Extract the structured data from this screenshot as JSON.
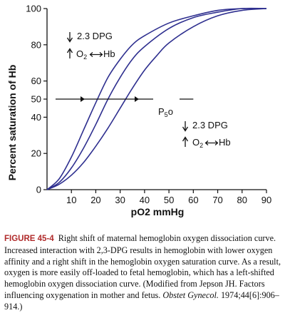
{
  "chart_data": {
    "type": "line",
    "xlabel": "pO2 mmHg",
    "ylabel": "Percent saturation of Hb",
    "xlim": [
      0,
      90
    ],
    "ylim": [
      0,
      100
    ],
    "x_ticks": [
      10,
      20,
      30,
      40,
      50,
      60,
      70,
      80,
      90
    ],
    "y_ticks": [
      0,
      20,
      40,
      50,
      60,
      80,
      100
    ],
    "grid": false,
    "series": [
      {
        "x": [
          0,
          5,
          10,
          15,
          20,
          25,
          30,
          35,
          40,
          50,
          60,
          70,
          80,
          90
        ],
        "values": [
          0,
          6,
          18,
          33,
          48,
          62,
          72,
          80,
          85,
          92,
          96,
          99,
          100,
          100
        ]
      },
      {
        "x": [
          0,
          5,
          10,
          15,
          20,
          25,
          30,
          35,
          40,
          50,
          60,
          70,
          80,
          90
        ],
        "values": [
          0,
          4,
          12,
          23,
          36,
          50,
          62,
          72,
          79,
          89,
          95,
          98,
          100,
          100
        ]
      },
      {
        "x": [
          0,
          5,
          10,
          15,
          20,
          25,
          30,
          35,
          40,
          45,
          50,
          60,
          70,
          80,
          90
        ],
        "values": [
          0,
          3,
          8,
          15,
          24,
          34,
          45,
          56,
          66,
          74,
          81,
          90,
          96,
          99,
          100
        ]
      }
    ],
    "reference_line": {
      "y": 50,
      "x_range": [
        3.5,
        60
      ]
    },
    "annotations": {
      "p50_label": {
        "main": "P",
        "sub": "5",
        "tail": "o"
      },
      "upper_left": {
        "line1": "2.3 DPG",
        "line2_pre": "O",
        "line2_sub": "2",
        "line2_post": "Hb"
      },
      "lower_right": {
        "line1": "2.3 DPG",
        "line2_pre": "O",
        "line2_sub": "2",
        "line2_post": "Hb"
      }
    }
  },
  "caption": {
    "label": "FIGURE 45-4",
    "text_main": " Right shift of maternal hemoglobin oxygen dissociation curve. Increased interaction with 2,3-DPG results in hemoglobin with lower oxygen affinity and a right shift in the hemoglobin oxygen saturation curve. As a result, oxygen is more easily off-loaded to fetal hemoglobin, which has a left-shifted hemoglobin oxygen dissociation curve. (Modified from Jepson JH. Factors influencing oxygenation in mother and fetus. ",
    "journal": "Obstet Gynecol.",
    "text_end": " 1974;44[6]:906–914.)"
  },
  "colors": {
    "curve": "#2e2f8f",
    "axis": "#111111",
    "fig_label": "#b02a2a"
  }
}
